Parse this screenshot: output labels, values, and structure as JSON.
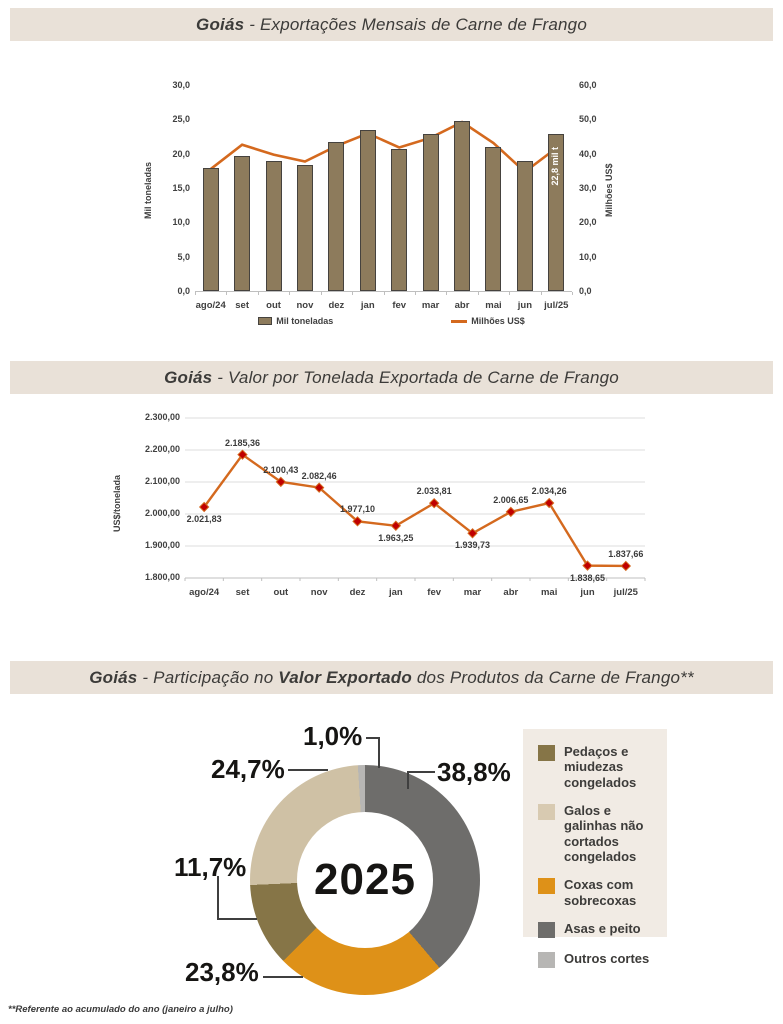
{
  "page": {
    "footnote": "**Referente ao acumulado do ano (janeiro a julho)"
  },
  "titles": {
    "t1": {
      "bold": "Goiás",
      "rest": " - Exportações Mensais de Carne de Frango"
    },
    "t2": {
      "bold": "Goiás",
      "rest": " - Valor por Tonelada Exportada de Carne de Frango"
    },
    "t3": {
      "bold": "Goiás",
      "mid": " - Participação no ",
      "bold2": "Valor Exportado",
      "rest": " dos Produtos da Carne de Frango**"
    }
  },
  "colors": {
    "bar": "#8d7b5c",
    "line_orange": "#d4691e",
    "marker_red": "#c00000",
    "title_bar_bg": "#e9e1d8"
  },
  "chart_data": [
    {
      "id": "monthly-exports",
      "type": "bar",
      "title": "Goiás - Exportações Mensais de Carne de Frango",
      "categories": [
        "ago/24",
        "set",
        "out",
        "nov",
        "dez",
        "jan",
        "fev",
        "mar",
        "abr",
        "mai",
        "jun",
        "jul/25"
      ],
      "series": [
        {
          "name": "Mil toneladas",
          "type": "bar",
          "axis": "left",
          "values": [
            17.9,
            19.7,
            19.0,
            18.3,
            21.7,
            23.5,
            20.7,
            22.8,
            24.8,
            21.0,
            18.9,
            22.8
          ]
        },
        {
          "name": "Milhões US$",
          "type": "line",
          "axis": "right",
          "values": [
            35.8,
            42.9,
            40.0,
            38.0,
            42.5,
            46.2,
            42.1,
            44.9,
            49.5,
            43.4,
            35.0,
            41.9
          ]
        }
      ],
      "ylabel_left": "Mil toneladas",
      "ylabel_right": "Milhões US$",
      "ylim_left": [
        0,
        30
      ],
      "ylim_right": [
        0,
        60
      ],
      "left_ticks": [
        "30,0",
        "25,0",
        "20,0",
        "15,0",
        "10,0",
        "5,0",
        "0,0"
      ],
      "right_ticks": [
        "60,0",
        "50,0",
        "40,0",
        "30,0",
        "20,0",
        "10,0",
        "0,0"
      ],
      "bar_annotation": {
        "index": 11,
        "text": "22,8 mil t"
      },
      "legend_position": "bottom",
      "grid": false
    },
    {
      "id": "value-per-ton",
      "type": "line",
      "title": "Goiás - Valor por Tonelada Exportada de Carne de Frango",
      "categories": [
        "ago/24",
        "set",
        "out",
        "nov",
        "dez",
        "jan",
        "fev",
        "mar",
        "abr",
        "mai",
        "jun",
        "jul/25"
      ],
      "values": [
        2021.83,
        2185.36,
        2100.43,
        2082.46,
        1977.1,
        1963.25,
        2033.81,
        1939.73,
        2006.65,
        2034.26,
        1838.65,
        1837.66
      ],
      "point_labels": [
        "2.021,83",
        "2.185,36",
        "2.100,43",
        "2.082,46",
        "1.977,10",
        "1.963,25",
        "2.033,81",
        "1.939,73",
        "2.006,65",
        "2.034,26",
        "1.838,65",
        "1.837,66"
      ],
      "label_positions": [
        "below",
        "above",
        "above",
        "above",
        "above",
        "below",
        "above",
        "below",
        "above",
        "above",
        "below",
        "above"
      ],
      "ylabel": "US$/tonelada",
      "ylim": [
        1800,
        2300
      ],
      "yticks": [
        "2.300,00",
        "2.200,00",
        "2.100,00",
        "2.000,00",
        "1.900,00",
        "1.800,00"
      ],
      "grid": true
    },
    {
      "id": "product-share",
      "type": "pie",
      "title": "Goiás - Participação no Valor Exportado dos Produtos da Carne de Frango**",
      "center_label": "2025",
      "slices": [
        {
          "label": "Asas e peito",
          "pct": 38.8,
          "pct_label": "38,8%",
          "color": "#6e6d6b"
        },
        {
          "label": "Coxas com sobrecoxas",
          "pct": 23.8,
          "pct_label": "23,8%",
          "color": "#de9118"
        },
        {
          "label": "Pedaços e miudezas congelados",
          "pct": 11.7,
          "pct_label": "11,7%",
          "color": "#867547"
        },
        {
          "label": "Galos e galinhas não cortados congelados",
          "pct": 24.7,
          "pct_label": "24,7%",
          "color": "#cfc1a5"
        },
        {
          "label": "Outros cortes",
          "pct": 1.0,
          "pct_label": "1,0%",
          "color": "#b7b6b4"
        }
      ],
      "legend": [
        {
          "label": "Pedaços e miudezas congelados",
          "color": "#867547"
        },
        {
          "label": "Galos e galinhas não cortados congelados",
          "color": "#d8cab1"
        },
        {
          "label": "Coxas com sobrecoxas",
          "color": "#de9118"
        },
        {
          "label": "Asas e peito",
          "color": "#6e6d6b"
        },
        {
          "label": "Outros cortes",
          "color": "#b7b6b4"
        }
      ],
      "legend_position": "right"
    }
  ]
}
